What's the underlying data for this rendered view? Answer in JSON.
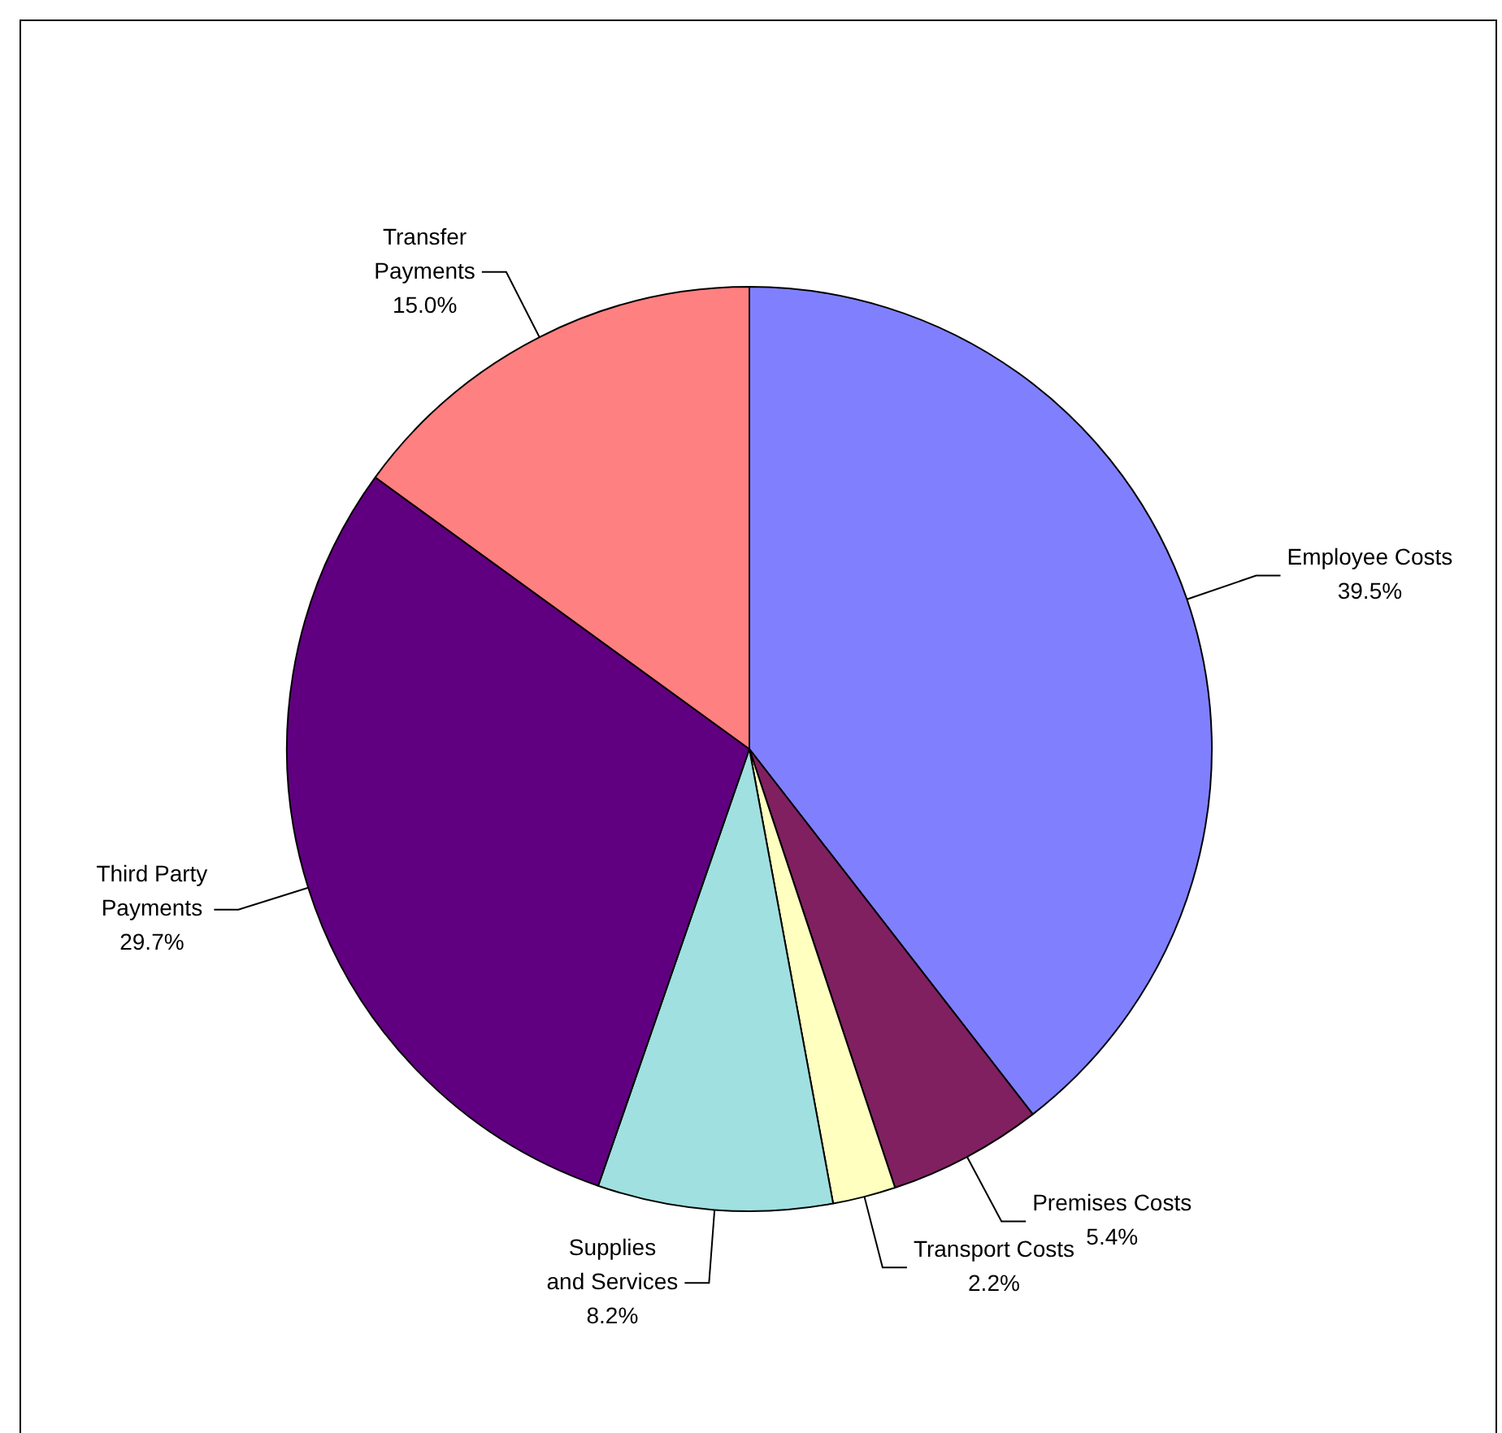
{
  "chart_data": {
    "type": "pie",
    "categories": [
      "Employee Costs",
      "Premises Costs",
      "Transport Costs",
      "Supplies and Services",
      "Third Party Payments",
      "Transfer Payments"
    ],
    "values": [
      39.5,
      5.4,
      2.2,
      8.2,
      29.7,
      15.0
    ],
    "value_labels": [
      "39.5%",
      "5.4%",
      "2.2%",
      "8.2%",
      "29.7%",
      "15.0%"
    ],
    "colors": [
      "#8080ff",
      "#802060",
      "#ffffc0",
      "#a0e0e0",
      "#600080",
      "#ff8080"
    ],
    "legend": false
  }
}
